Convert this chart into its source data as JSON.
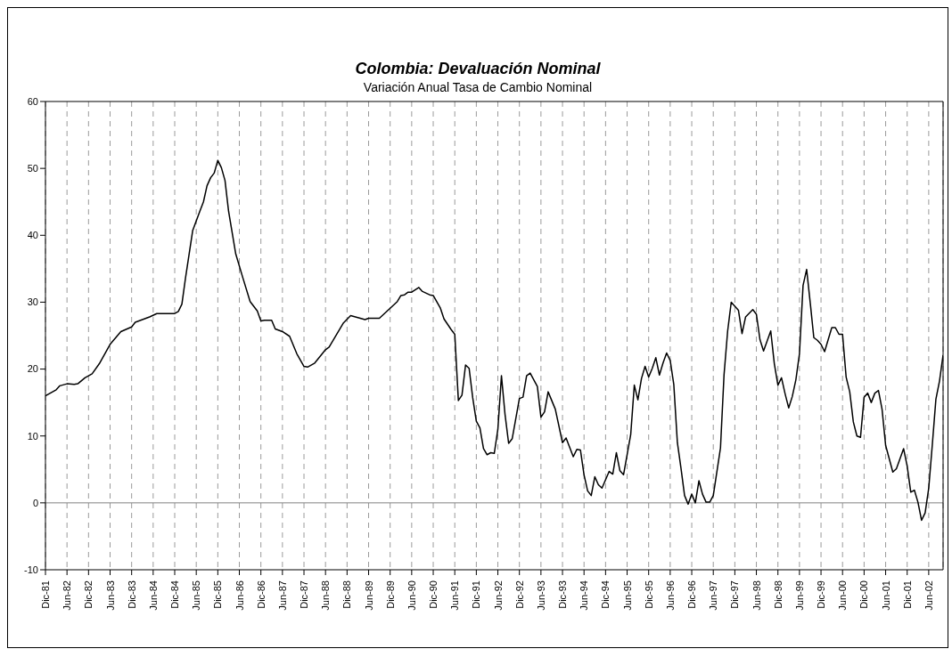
{
  "chart_data": {
    "type": "line",
    "title": "Colombia: Devaluación Nominal",
    "subtitle": "Variación Anual Tasa de Cambio Nominal",
    "x": [
      "1981-12",
      "1982-03",
      "1982-04",
      "1982-06",
      "1982-08",
      "1982-09",
      "1982-11",
      "1983-01",
      "1983-03",
      "1983-06",
      "1983-09",
      "1983-12",
      "1984-01",
      "1984-05",
      "1984-07",
      "1984-12",
      "1985-01",
      "1985-02",
      "1985-03",
      "1985-05",
      "1985-07",
      "1985-08",
      "1985-09",
      "1985-10",
      "1985-11",
      "1985-12",
      "1986-01",
      "1986-02",
      "1986-03",
      "1986-05",
      "1986-07",
      "1986-09",
      "1986-11",
      "1986-12",
      "1987-01",
      "1987-03",
      "1987-04",
      "1987-06",
      "1987-08",
      "1987-10",
      "1987-12",
      "1988-01",
      "1988-03",
      "1988-06",
      "1988-07",
      "1988-11",
      "1989-01",
      "1989-03",
      "1989-05",
      "1989-06",
      "1989-09",
      "1989-11",
      "1990-02",
      "1990-03",
      "1990-04",
      "1990-05",
      "1990-06",
      "1990-08",
      "1990-09",
      "1990-11",
      "1990-12",
      "1991-02",
      "1991-03",
      "1991-05",
      "1991-06",
      "1991-07",
      "1991-08",
      "1991-09",
      "1991-10",
      "1991-11",
      "1991-12",
      "1992-01",
      "1992-02",
      "1992-03",
      "1992-04",
      "1992-05",
      "1992-06",
      "1992-07",
      "1992-08",
      "1992-09",
      "1992-10",
      "1992-12",
      "1993-01",
      "1993-02",
      "1993-03",
      "1993-05",
      "1993-06",
      "1993-07",
      "1993-08",
      "1993-10",
      "1993-12",
      "1994-01",
      "1994-03",
      "1994-04",
      "1994-05",
      "1994-06",
      "1994-07",
      "1994-08",
      "1994-09",
      "1994-10",
      "1994-11",
      "1995-01",
      "1995-02",
      "1995-03",
      "1995-04",
      "1995-05",
      "1995-07",
      "1995-08",
      "1995-09",
      "1995-10",
      "1995-11",
      "1995-12",
      "1996-01",
      "1996-02",
      "1996-03",
      "1996-04",
      "1996-05",
      "1996-06",
      "1996-07",
      "1996-08",
      "1996-09",
      "1996-10",
      "1996-11",
      "1996-12",
      "1997-01",
      "1997-02",
      "1997-03",
      "1997-04",
      "1997-05",
      "1997-06",
      "1997-08",
      "1997-09",
      "1997-10",
      "1997-11",
      "1998-01",
      "1998-02",
      "1998-03",
      "1998-05",
      "1998-06",
      "1998-07",
      "1998-08",
      "1998-09",
      "1998-10",
      "1998-11",
      "1998-12",
      "1999-01",
      "1999-02",
      "1999-03",
      "1999-04",
      "1999-05",
      "1999-06",
      "1999-07",
      "1999-08",
      "1999-09",
      "1999-10",
      "1999-11",
      "1999-12",
      "2000-01",
      "2000-03",
      "2000-04",
      "2000-05",
      "2000-06",
      "2000-07",
      "2000-08",
      "2000-09",
      "2000-10",
      "2000-11",
      "2000-12",
      "2001-01",
      "2001-02",
      "2001-03",
      "2001-04",
      "2001-05",
      "2001-06",
      "2001-07",
      "2001-08",
      "2001-09",
      "2001-11",
      "2001-12",
      "2002-01",
      "2002-02",
      "2002-03",
      "2002-04",
      "2002-05",
      "2002-06",
      "2002-07",
      "2002-08",
      "2002-09",
      "2002-10"
    ],
    "series": [
      {
        "color": "#000000",
        "values": [
          16.0,
          16.9,
          17.5,
          17.8,
          17.7,
          17.8,
          18.7,
          19.3,
          20.8,
          23.7,
          25.6,
          26.3,
          27.0,
          27.8,
          28.3,
          28.3,
          28.6,
          29.7,
          33.6,
          40.7,
          43.6,
          45.0,
          47.4,
          48.6,
          49.3,
          51.2,
          50.1,
          48.2,
          43.6,
          37.2,
          33.6,
          30.1,
          28.7,
          27.2,
          27.3,
          27.3,
          26.0,
          25.6,
          24.9,
          22.3,
          20.4,
          20.3,
          20.9,
          22.9,
          23.3,
          26.9,
          28.0,
          27.7,
          27.4,
          27.6,
          27.6,
          28.6,
          30.1,
          31.0,
          31.1,
          31.5,
          31.5,
          32.2,
          31.6,
          31.1,
          31.0,
          29.1,
          27.5,
          25.9,
          25.2,
          15.3,
          16.1,
          20.6,
          20.1,
          15.7,
          12.2,
          11.2,
          8.1,
          7.2,
          7.5,
          7.4,
          11.0,
          19.0,
          13.2,
          8.9,
          9.6,
          15.6,
          15.8,
          19.0,
          19.4,
          17.4,
          12.8,
          13.6,
          16.6,
          14.0,
          9.0,
          9.7,
          6.9,
          8.0,
          7.9,
          4.2,
          1.8,
          1.1,
          3.9,
          2.7,
          2.2,
          4.7,
          4.3,
          7.5,
          4.8,
          4.2,
          10.2,
          17.6,
          15.4,
          18.6,
          20.4,
          18.8,
          20.1,
          21.7,
          19.1,
          20.9,
          22.4,
          21.3,
          17.7,
          9.0,
          5.2,
          1.1,
          -0.2,
          1.3,
          0.0,
          3.3,
          1.3,
          0.1,
          0.1,
          1.1,
          8.2,
          19.2,
          25.7,
          30.0,
          28.8,
          25.3,
          27.8,
          28.9,
          28.2,
          24.4,
          22.7,
          24.2,
          25.7,
          20.8,
          17.6,
          18.7,
          16.3,
          14.2,
          15.9,
          18.4,
          22.3,
          32.5,
          34.9,
          29.9,
          24.7,
          24.3,
          23.7,
          22.6,
          26.2,
          26.2,
          25.2,
          25.2,
          18.8,
          16.6,
          12.1,
          10.0,
          9.8,
          15.8,
          16.4,
          15.0,
          16.4,
          16.8,
          14.0,
          8.6,
          6.6,
          4.6,
          5.1,
          8.1,
          5.5,
          1.6,
          1.9,
          0.1,
          -2.6,
          -1.5,
          2.2,
          8.7,
          15.5,
          18.2,
          22.1
        ]
      }
    ],
    "xlim": [
      "1981-12",
      "2002-10"
    ],
    "xticks": [
      {
        "value": "1981-12",
        "label": "Dic-81"
      },
      {
        "value": "1982-06",
        "label": "Jun-82"
      },
      {
        "value": "1982-12",
        "label": "Dic-82"
      },
      {
        "value": "1983-06",
        "label": "Jun-83"
      },
      {
        "value": "1983-12",
        "label": "Dic-83"
      },
      {
        "value": "1984-06",
        "label": "Jun-84"
      },
      {
        "value": "1984-12",
        "label": "Dic-84"
      },
      {
        "value": "1985-06",
        "label": "Jun-85"
      },
      {
        "value": "1985-12",
        "label": "Dic-85"
      },
      {
        "value": "1986-06",
        "label": "Jun-86"
      },
      {
        "value": "1986-12",
        "label": "Dic-86"
      },
      {
        "value": "1987-06",
        "label": "Jun-87"
      },
      {
        "value": "1987-12",
        "label": "Dic-87"
      },
      {
        "value": "1988-06",
        "label": "Jun-88"
      },
      {
        "value": "1988-12",
        "label": "Dic-88"
      },
      {
        "value": "1989-06",
        "label": "Jun-89"
      },
      {
        "value": "1989-12",
        "label": "Dic-89"
      },
      {
        "value": "1990-06",
        "label": "Jun-90"
      },
      {
        "value": "1990-12",
        "label": "Dic-90"
      },
      {
        "value": "1991-06",
        "label": "Jun-91"
      },
      {
        "value": "1991-12",
        "label": "Dic-91"
      },
      {
        "value": "1992-06",
        "label": "Jun-92"
      },
      {
        "value": "1992-12",
        "label": "Dic-92"
      },
      {
        "value": "1993-06",
        "label": "Jun-93"
      },
      {
        "value": "1993-12",
        "label": "Dic-93"
      },
      {
        "value": "1994-06",
        "label": "Jun-94"
      },
      {
        "value": "1994-12",
        "label": "Dic-94"
      },
      {
        "value": "1995-06",
        "label": "Jun-95"
      },
      {
        "value": "1995-12",
        "label": "Dic-95"
      },
      {
        "value": "1996-06",
        "label": "Jun-96"
      },
      {
        "value": "1996-12",
        "label": "Dic-96"
      },
      {
        "value": "1997-06",
        "label": "Jun-97"
      },
      {
        "value": "1997-12",
        "label": "Dic-97"
      },
      {
        "value": "1998-06",
        "label": "Jun-98"
      },
      {
        "value": "1998-12",
        "label": "Dic-98"
      },
      {
        "value": "1999-06",
        "label": "Jun-99"
      },
      {
        "value": "1999-12",
        "label": "Dic-99"
      },
      {
        "value": "2000-06",
        "label": "Jun-00"
      },
      {
        "value": "2000-12",
        "label": "Dic-00"
      },
      {
        "value": "2001-06",
        "label": "Jun-01"
      },
      {
        "value": "2001-12",
        "label": "Dic-01"
      },
      {
        "value": "2002-06",
        "label": "Jun-02"
      }
    ],
    "ylim": [
      -10,
      60
    ],
    "yticks": [
      -10,
      0,
      10,
      20,
      30,
      40,
      50,
      60
    ],
    "ref_lines": [
      {
        "axis": "y",
        "value": 0,
        "color": "#808080"
      }
    ],
    "grid": "x",
    "legend": false,
    "marker": "none",
    "line_style": "solid"
  }
}
